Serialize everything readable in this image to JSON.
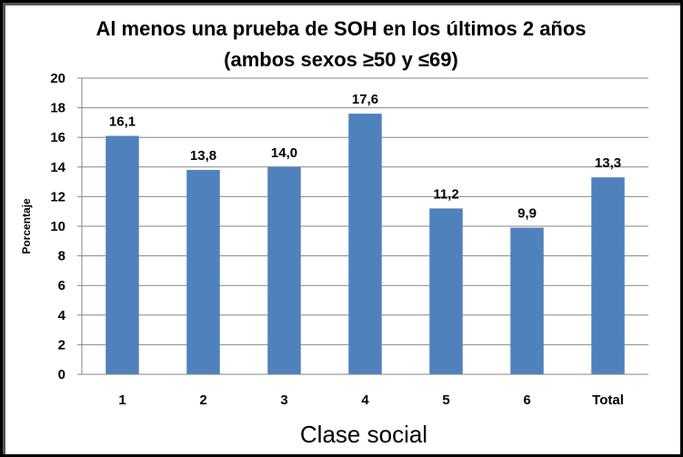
{
  "chart_data": {
    "type": "bar",
    "title_lines": [
      "Al menos una prueba de SOH en los últimos 2 años",
      "(ambos sexos ≥50 y ≤69)"
    ],
    "xlabel": "Clase social",
    "ylabel": "Porcentaje",
    "categories": [
      "1",
      "2",
      "3",
      "4",
      "5",
      "6",
      "Total"
    ],
    "values": [
      16.1,
      13.8,
      14.0,
      17.6,
      11.2,
      9.9,
      13.3
    ],
    "data_labels": [
      "16,1",
      "13,8",
      "14,0",
      "17,6",
      "11,2",
      "9,9",
      "13,3"
    ],
    "ylim": [
      0,
      20
    ],
    "yticks": [
      0,
      2,
      4,
      6,
      8,
      10,
      12,
      14,
      16,
      18,
      20
    ],
    "grid": true,
    "legend": "none",
    "bar_color": "#4F81BD"
  }
}
